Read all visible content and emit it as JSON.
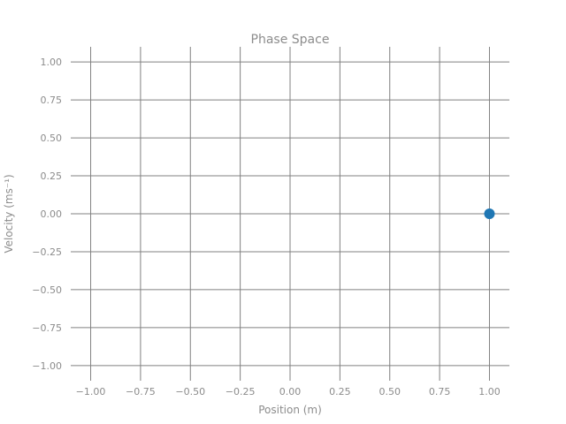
{
  "chart_data": {
    "type": "scatter",
    "title": "Phase Space",
    "xlabel": "Position (m)",
    "ylabel": "Velocity (ms⁻¹)",
    "xlim": [
      -1.1,
      1.1
    ],
    "ylim": [
      -1.1,
      1.1
    ],
    "xticks": [
      -1.0,
      -0.75,
      -0.5,
      -0.25,
      0.0,
      0.25,
      0.5,
      0.75,
      1.0
    ],
    "yticks": [
      -1.0,
      -0.75,
      -0.5,
      -0.25,
      0.0,
      0.25,
      0.5,
      0.75,
      1.0
    ],
    "xtick_labels": [
      "−1.00",
      "−0.75",
      "−0.50",
      "−0.25",
      "0.00",
      "0.25",
      "0.50",
      "0.75",
      "1.00"
    ],
    "ytick_labels": [
      "−1.00",
      "−0.75",
      "−0.50",
      "−0.25",
      "0.00",
      "0.25",
      "0.50",
      "0.75",
      "1.00"
    ],
    "grid": true,
    "series": [
      {
        "points": [
          {
            "x": 1.0,
            "y": 0.0
          }
        ],
        "color": "#1f77b4"
      }
    ]
  }
}
